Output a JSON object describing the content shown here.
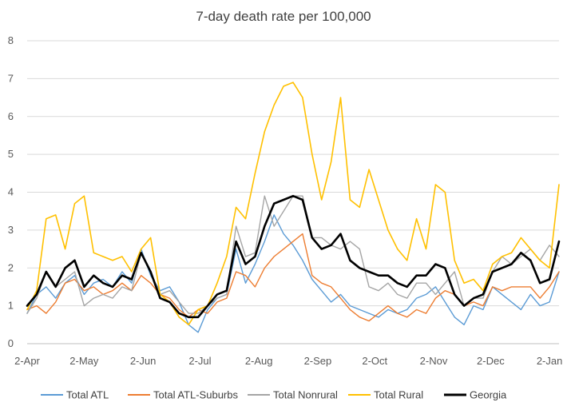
{
  "chart_data": {
    "type": "line",
    "title": "7-day death rate per 100,000",
    "xlabel": "",
    "ylabel": "",
    "ylim": [
      0,
      8
    ],
    "yticks": [
      0,
      1,
      2,
      3,
      4,
      5,
      6,
      7,
      8
    ],
    "x_tick_labels": [
      "2-Apr",
      "2-May",
      "2-Jun",
      "2-Jul",
      "2-Aug",
      "2-Sep",
      "2-Oct",
      "2-Nov",
      "2-Dec",
      "2-Jan"
    ],
    "x_tick_days": [
      0,
      30,
      61,
      91,
      122,
      153,
      183,
      214,
      244,
      275
    ],
    "x_max_day": 280,
    "grid": "horizontal",
    "legend_position": "bottom",
    "series": [
      {
        "name": "Total ATL",
        "color": "#5B9BD5",
        "width": 1.4,
        "x": [
          0,
          5,
          10,
          15,
          20,
          25,
          30,
          35,
          40,
          45,
          50,
          55,
          60,
          65,
          70,
          75,
          80,
          85,
          90,
          95,
          100,
          105,
          110,
          115,
          120,
          125,
          130,
          135,
          140,
          145,
          150,
          155,
          160,
          165,
          170,
          175,
          180,
          185,
          190,
          195,
          200,
          205,
          210,
          215,
          220,
          225,
          230,
          235,
          240,
          245,
          250,
          255,
          260,
          265,
          270,
          275,
          280
        ],
        "values": [
          0.8,
          1.3,
          1.5,
          1.2,
          1.6,
          1.8,
          1.3,
          1.6,
          1.7,
          1.5,
          1.9,
          1.6,
          2.5,
          1.8,
          1.4,
          1.5,
          1.1,
          0.5,
          0.3,
          0.9,
          1.2,
          1.3,
          2.5,
          1.6,
          2.1,
          2.7,
          3.4,
          2.9,
          2.6,
          2.2,
          1.7,
          1.4,
          1.1,
          1.3,
          1.0,
          0.9,
          0.8,
          0.7,
          0.9,
          0.8,
          0.9,
          1.2,
          1.3,
          1.5,
          1.1,
          0.7,
          0.5,
          1.0,
          0.9,
          1.5,
          1.3,
          1.1,
          0.9,
          1.3,
          1.0,
          1.1,
          1.9
        ]
      },
      {
        "name": "Total ATL-Suburbs",
        "color": "#ED7D31",
        "width": 1.4,
        "x": [
          0,
          5,
          10,
          15,
          20,
          25,
          30,
          35,
          40,
          45,
          50,
          55,
          60,
          65,
          70,
          75,
          80,
          85,
          90,
          95,
          100,
          105,
          110,
          115,
          120,
          125,
          130,
          135,
          140,
          145,
          150,
          155,
          160,
          165,
          170,
          175,
          180,
          185,
          190,
          195,
          200,
          205,
          210,
          215,
          220,
          225,
          230,
          235,
          240,
          245,
          250,
          255,
          260,
          265,
          270,
          275,
          280
        ],
        "values": [
          0.9,
          1.0,
          0.8,
          1.1,
          1.6,
          1.7,
          1.4,
          1.5,
          1.3,
          1.4,
          1.6,
          1.4,
          1.8,
          1.6,
          1.3,
          1.2,
          0.9,
          0.7,
          0.9,
          0.8,
          1.1,
          1.2,
          1.9,
          1.8,
          1.5,
          2.0,
          2.3,
          2.5,
          2.7,
          2.9,
          1.8,
          1.6,
          1.5,
          1.2,
          0.9,
          0.7,
          0.6,
          0.8,
          1.0,
          0.8,
          0.7,
          0.9,
          0.8,
          1.2,
          1.4,
          1.3,
          1.0,
          1.1,
          1.0,
          1.5,
          1.4,
          1.5,
          1.5,
          1.5,
          1.2,
          1.5,
          1.9
        ]
      },
      {
        "name": "Total Nonrural",
        "color": "#A5A5A5",
        "width": 1.4,
        "x": [
          0,
          5,
          10,
          15,
          20,
          25,
          30,
          35,
          40,
          45,
          50,
          55,
          60,
          65,
          70,
          75,
          80,
          85,
          90,
          95,
          100,
          105,
          110,
          115,
          120,
          125,
          130,
          135,
          140,
          145,
          150,
          155,
          160,
          165,
          170,
          175,
          180,
          185,
          190,
          195,
          200,
          205,
          210,
          215,
          220,
          225,
          230,
          235,
          240,
          245,
          250,
          255,
          260,
          265,
          270,
          275,
          280
        ],
        "values": [
          0.8,
          1.2,
          1.9,
          1.5,
          1.7,
          1.9,
          1.0,
          1.2,
          1.3,
          1.2,
          1.5,
          1.4,
          2.4,
          1.9,
          1.3,
          1.4,
          1.1,
          0.8,
          0.8,
          1.0,
          1.2,
          1.3,
          3.1,
          2.3,
          2.4,
          3.9,
          3.1,
          3.5,
          3.9,
          3.9,
          2.8,
          2.8,
          2.6,
          2.5,
          2.7,
          2.5,
          1.5,
          1.4,
          1.6,
          1.3,
          1.2,
          1.6,
          1.6,
          1.3,
          1.6,
          1.9,
          1.0,
          1.2,
          1.2,
          1.9,
          2.3,
          2.1,
          2.3,
          2.5,
          2.2,
          2.6,
          2.3
        ]
      },
      {
        "name": "Total Rural",
        "color": "#FFC000",
        "width": 1.6,
        "x": [
          0,
          5,
          10,
          15,
          20,
          25,
          30,
          35,
          40,
          45,
          50,
          55,
          60,
          65,
          70,
          75,
          80,
          85,
          90,
          95,
          100,
          105,
          110,
          115,
          120,
          125,
          130,
          135,
          140,
          145,
          150,
          155,
          160,
          165,
          170,
          175,
          180,
          185,
          190,
          195,
          200,
          205,
          210,
          215,
          220,
          225,
          230,
          235,
          240,
          245,
          250,
          255,
          260,
          265,
          270,
          275,
          280
        ],
        "values": [
          0.9,
          1.4,
          3.3,
          3.4,
          2.5,
          3.7,
          3.9,
          2.4,
          2.3,
          2.2,
          2.3,
          1.9,
          2.5,
          2.8,
          1.3,
          1.1,
          0.7,
          0.5,
          0.9,
          1.0,
          1.6,
          2.3,
          3.6,
          3.3,
          4.5,
          5.6,
          6.3,
          6.8,
          6.9,
          6.5,
          5.0,
          3.8,
          4.8,
          6.5,
          3.8,
          3.6,
          4.6,
          3.8,
          3.0,
          2.5,
          2.2,
          3.3,
          2.5,
          4.2,
          4.0,
          2.2,
          1.6,
          1.7,
          1.4,
          2.1,
          2.3,
          2.4,
          2.8,
          2.5,
          2.2,
          2.0,
          4.2
        ]
      },
      {
        "name": "Georgia",
        "color": "#000000",
        "width": 2.6,
        "x": [
          0,
          5,
          10,
          15,
          20,
          25,
          30,
          35,
          40,
          45,
          50,
          55,
          60,
          65,
          70,
          75,
          80,
          85,
          90,
          95,
          100,
          105,
          110,
          115,
          120,
          125,
          130,
          135,
          140,
          145,
          150,
          155,
          160,
          165,
          170,
          175,
          180,
          185,
          190,
          195,
          200,
          205,
          210,
          215,
          220,
          225,
          230,
          235,
          240,
          245,
          250,
          255,
          260,
          265,
          270,
          275,
          280
        ],
        "values": [
          1.0,
          1.3,
          1.9,
          1.5,
          2.0,
          2.2,
          1.5,
          1.8,
          1.6,
          1.5,
          1.8,
          1.7,
          2.4,
          1.9,
          1.2,
          1.1,
          0.8,
          0.7,
          0.7,
          1.0,
          1.3,
          1.4,
          2.7,
          2.1,
          2.3,
          3.1,
          3.7,
          3.8,
          3.9,
          3.8,
          2.8,
          2.5,
          2.6,
          2.9,
          2.2,
          2.0,
          1.9,
          1.8,
          1.8,
          1.6,
          1.5,
          1.8,
          1.8,
          2.1,
          2.0,
          1.3,
          1.0,
          1.2,
          1.3,
          1.9,
          2.0,
          2.1,
          2.4,
          2.2,
          1.6,
          1.7,
          2.7
        ]
      }
    ]
  }
}
